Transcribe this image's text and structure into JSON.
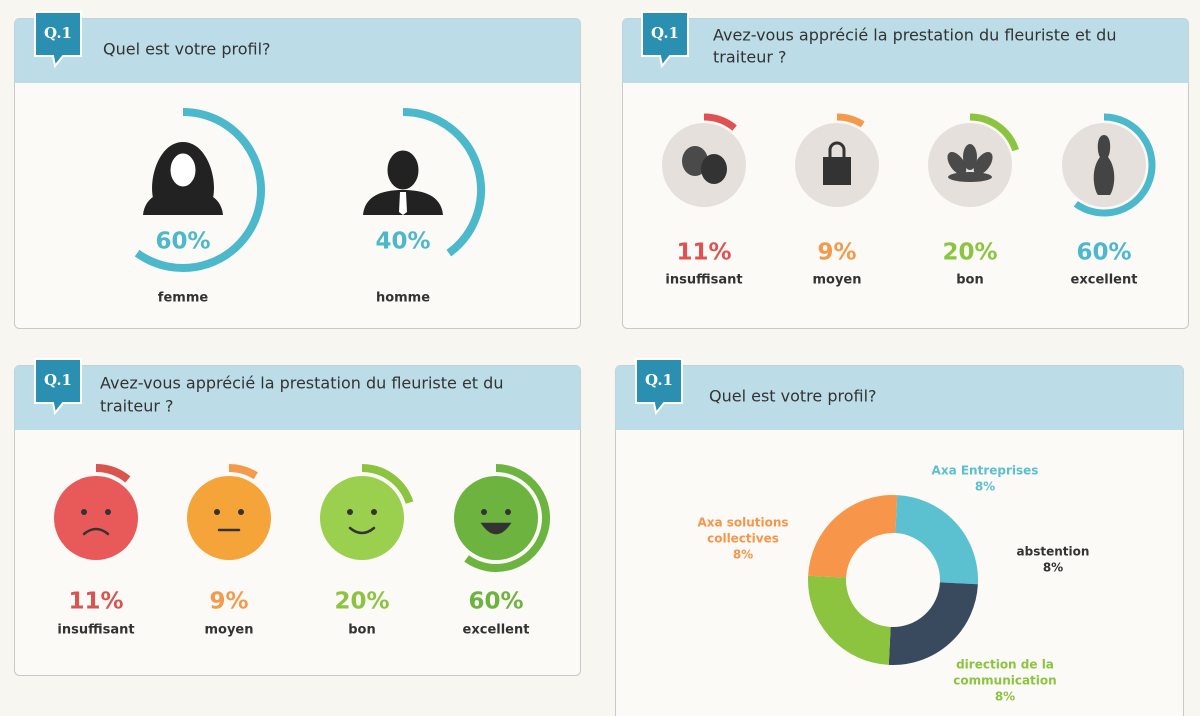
{
  "panels": [
    {
      "badge": "Q.1",
      "title": [
        "Quel est votre profil?"
      ],
      "items": [
        {
          "label": "femme",
          "value": 60,
          "value_label": "60%",
          "color": "#4bb8cc"
        },
        {
          "label": "homme",
          "value": 40,
          "value_label": "40%",
          "color": "#4bb8cc"
        }
      ]
    },
    {
      "badge": "Q.1",
      "title": [
        "Avez-vous apprécié la prestation du fleuriste et du",
        "traiteur ?"
      ],
      "items": [
        {
          "label": "insuffisant",
          "value": 11,
          "value_label": "11%",
          "color": "#e05252"
        },
        {
          "label": "moyen",
          "value": 9,
          "value_label": "9%",
          "color": "#f39a4c"
        },
        {
          "label": "bon",
          "value": 20,
          "value_label": "20%",
          "color": "#8cc43f"
        },
        {
          "label": "excellent",
          "value": 60,
          "value_label": "60%",
          "color": "#4bb8cc"
        }
      ]
    },
    {
      "badge": "Q.1",
      "title": [
        "Avez-vous apprécié la prestation du fleuriste et du",
        "traiteur ?"
      ],
      "items": [
        {
          "label": "insuffisant",
          "value": 11,
          "value_label": "11%",
          "color": "#d9534f"
        },
        {
          "label": "moyen",
          "value": 9,
          "value_label": "9%",
          "color": "#f39a4c"
        },
        {
          "label": "bon",
          "value": 20,
          "value_label": "20%",
          "color": "#8cc43f"
        },
        {
          "label": "excellent",
          "value": 60,
          "value_label": "60%",
          "color": "#6cb33f"
        }
      ]
    },
    {
      "badge": "Q.1",
      "title": [
        "Quel est votre profil?"
      ],
      "donut": [
        {
          "name": [
            "Axa Entreprises"
          ],
          "value": 8,
          "value_label": "8%",
          "color": "#5bc0d0"
        },
        {
          "name": [
            "abstention"
          ],
          "value": 8,
          "value_label": "8%",
          "color": "#3a4a5e"
        },
        {
          "name": [
            "direction de la",
            "communication"
          ],
          "value": 8,
          "value_label": "8%",
          "color": "#8cc43f"
        },
        {
          "name": [
            "Axa solutions",
            "collectives"
          ],
          "value": 8,
          "value_label": "8%",
          "color": "#f7964a"
        }
      ]
    }
  ]
}
